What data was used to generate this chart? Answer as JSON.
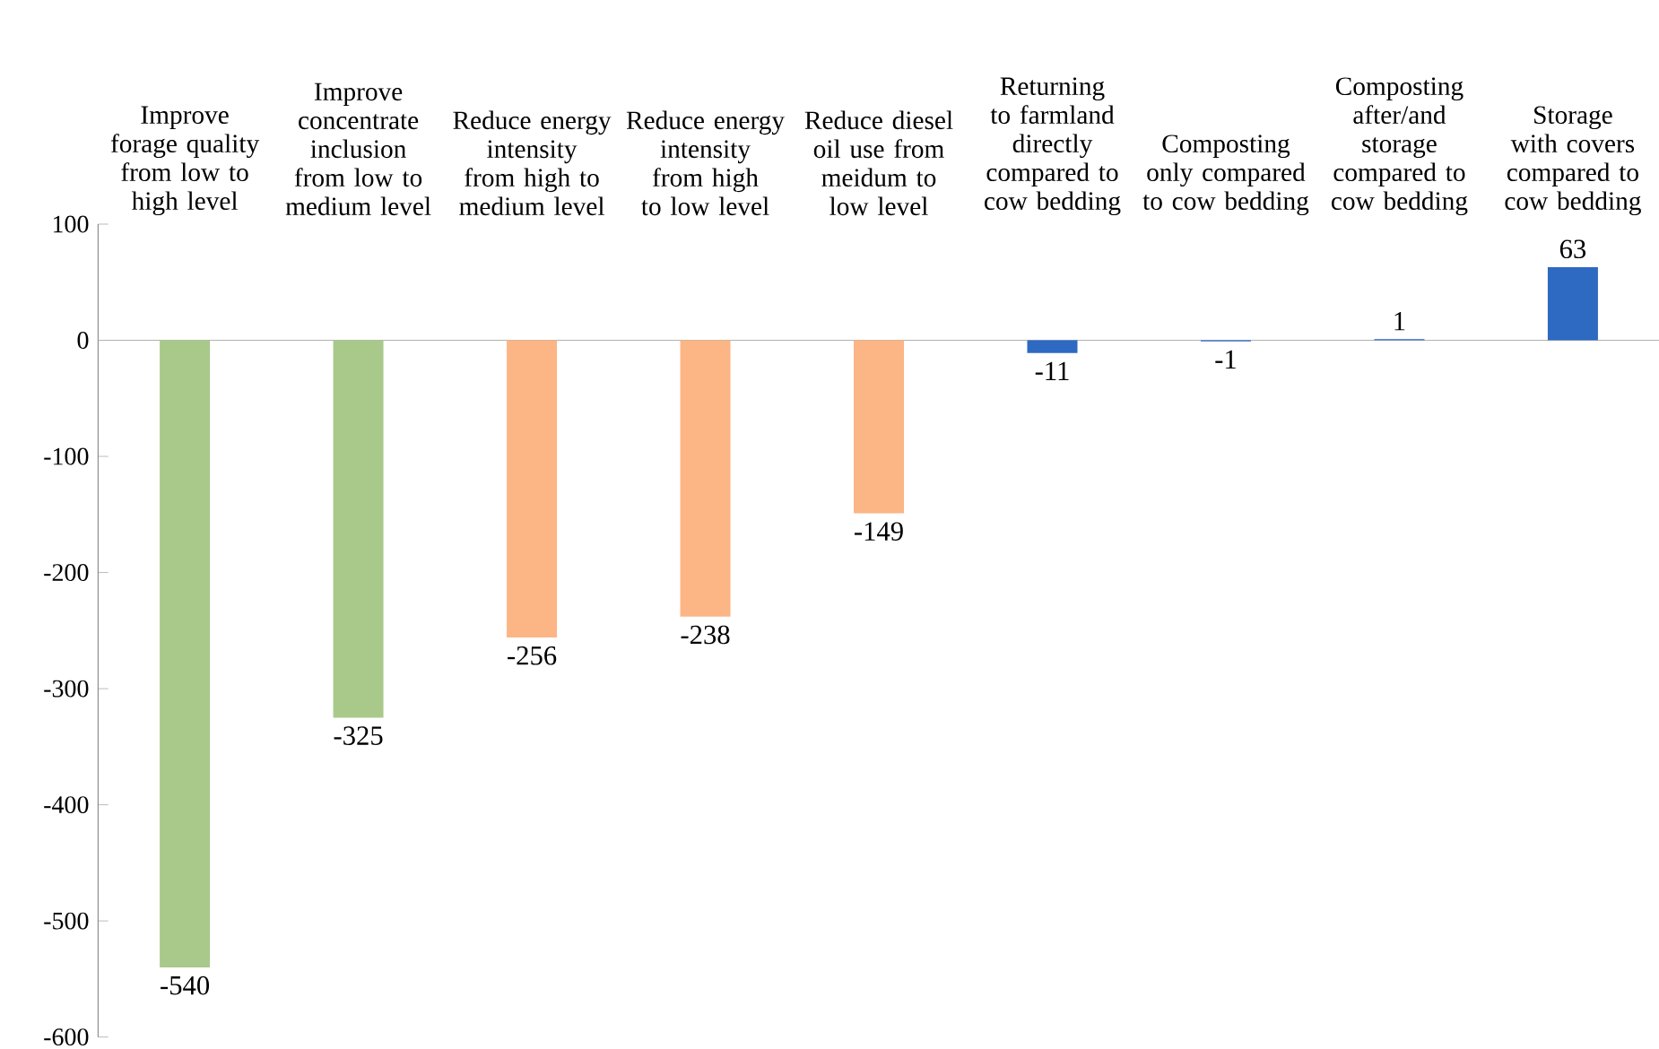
{
  "chart_data": {
    "type": "bar",
    "categories": [
      "Improve forage quality from low to high level",
      "Improve concentrate inclusion from low to medium level",
      "Reduce energy intensity from high to medium level",
      "Reduce energy intensity from high to low level",
      "Reduce diesel oil use from meidum to low level",
      "Returning to farmland directly compared to cow bedding",
      "Composting only compared to cow bedding",
      "Composting after/and storage compared to cow bedding",
      "Storage with covers compared to cow bedding"
    ],
    "values": [
      -540,
      -325,
      -256,
      -238,
      -149,
      -11,
      -1,
      1,
      63
    ],
    "colors": [
      "#a9c98b",
      "#a9c98b",
      "#fcb585",
      "#fcb585",
      "#fcb585",
      "#2e69c2",
      "#2e69c2",
      "#2e69c2",
      "#2e69c2"
    ],
    "ylim": [
      -600,
      100
    ],
    "yticks": [
      -600,
      -500,
      -400,
      -300,
      -200,
      -100,
      0,
      100
    ],
    "data_labels": true
  }
}
